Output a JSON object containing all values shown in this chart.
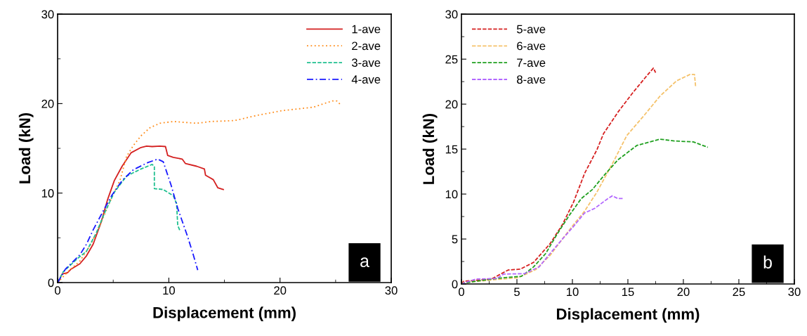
{
  "chart_data": [
    {
      "type": "line",
      "xlabel": "Displacement (mm)",
      "ylabel": "Load (kN)",
      "annotations": [
        "a"
      ],
      "xlim": [
        0,
        30
      ],
      "ylim": [
        0,
        30
      ],
      "xticks": [
        0,
        {
          "value": 5,
          "label": null
        },
        10,
        {
          "value": 15,
          "label": null
        },
        20,
        {
          "value": 25,
          "label": null
        },
        30
      ],
      "yticks": [
        0,
        {
          "value": 5,
          "label": null
        },
        10,
        {
          "value": 15,
          "label": null
        },
        20,
        {
          "value": 25,
          "label": null
        },
        30
      ],
      "grid": false,
      "legend": "top right",
      "marker": "none",
      "series": [
        {
          "name": "1-ave",
          "color": "#d42020",
          "line_style": "solid",
          "x": [
            0,
            0.1,
            0.4,
            0.9,
            1.2,
            2.0,
            2.6,
            3.2,
            3.9,
            4.5,
            5.1,
            5.8,
            6.6,
            7.5,
            8.0,
            8.5,
            9.2,
            9.7,
            9.9,
            10.4,
            11.2,
            11.5,
            12.5,
            13.2,
            13.3,
            14.0,
            14.4,
            14.9
          ],
          "values": [
            0,
            0.15,
            0.95,
            1.1,
            1.5,
            2.1,
            3.0,
            4.3,
            6.7,
            9.3,
            11.4,
            13.0,
            14.5,
            15.1,
            15.25,
            15.2,
            15.25,
            15.2,
            14.2,
            14.0,
            13.8,
            13.3,
            13.0,
            12.7,
            12.0,
            11.5,
            10.6,
            10.4
          ]
        },
        {
          "name": "2-ave",
          "color": "#ff8c1a",
          "line_style": "dotted",
          "x": [
            0,
            1.0,
            2.0,
            3.0,
            3.8,
            4.9,
            5.6,
            6.2,
            6.8,
            7.5,
            8.3,
            9.2,
            10.4,
            12.5,
            13.8,
            15.9,
            18.0,
            20.1,
            23.0,
            24.7,
            25.1,
            25.5
          ],
          "values": [
            0,
            1.3,
            2.4,
            4.3,
            6.4,
            9.6,
            11.4,
            14.1,
            15.3,
            16.4,
            17.3,
            17.8,
            18.0,
            17.8,
            18.0,
            18.1,
            18.7,
            19.2,
            19.6,
            20.3,
            20.3,
            19.8
          ]
        },
        {
          "name": "3-ave",
          "color": "#20c090",
          "line_style": "dashed",
          "x": [
            0,
            0.5,
            1.8,
            2.6,
            3.5,
            4.3,
            5.1,
            6.2,
            7.5,
            8.5,
            8.7,
            8.7,
            9.5,
            10.4,
            10.7,
            10.8,
            11.0
          ],
          "values": [
            0,
            1.2,
            2.7,
            3.5,
            5.6,
            8.0,
            10.1,
            11.9,
            12.7,
            13.2,
            13.0,
            10.5,
            10.4,
            9.7,
            8.8,
            6.4,
            5.8
          ]
        },
        {
          "name": "4-ave",
          "color": "#1a1aff",
          "line_style": "dashdot",
          "x": [
            0,
            0.7,
            2.0,
            2.6,
            3.2,
            4.1,
            4.9,
            5.8,
            6.8,
            8.1,
            9.0,
            9.5,
            10.2,
            10.8,
            11.7,
            12.2,
            12.6
          ],
          "values": [
            0,
            1.5,
            3.1,
            4.3,
            5.9,
            8.0,
            9.8,
            11.4,
            12.6,
            13.4,
            13.8,
            13.5,
            10.9,
            8.3,
            5.1,
            3.1,
            1.4
          ]
        }
      ]
    },
    {
      "type": "line",
      "xlabel": "Displacement (mm)",
      "ylabel": "Load (kN)",
      "annotations": [
        "b"
      ],
      "xlim": [
        0,
        30
      ],
      "ylim": [
        0,
        30
      ],
      "xticks": [
        0,
        {
          "value": 2.5,
          "label": null
        },
        5,
        {
          "value": 7.5,
          "label": null
        },
        10,
        {
          "value": 12.5,
          "label": null
        },
        15,
        {
          "value": 17.5,
          "label": null
        },
        20,
        {
          "value": 22.5,
          "label": null
        },
        25,
        {
          "value": 27.5,
          "label": null
        },
        30
      ],
      "yticks": [
        0,
        {
          "value": 2.5,
          "label": null
        },
        5,
        {
          "value": 7.5,
          "label": null
        },
        10,
        {
          "value": 12.5,
          "label": null
        },
        15,
        {
          "value": 17.5,
          "label": null
        },
        20,
        {
          "value": 22.5,
          "label": null
        },
        25,
        {
          "value": 27.5,
          "label": null
        },
        30
      ],
      "grid": false,
      "legend": "top left",
      "marker": "none",
      "line_style": "dashed",
      "series": [
        {
          "name": "5-ave",
          "color": "#d62020",
          "x": [
            0,
            0.2,
            2.7,
            4.2,
            5.3,
            6.5,
            8.0,
            9.1,
            10.1,
            11.1,
            12.2,
            12.8,
            14.1,
            15.4,
            16.6,
            17.3,
            17.5
          ],
          "values": [
            0,
            0.3,
            0.55,
            1.55,
            1.65,
            2.4,
            4.5,
            6.6,
            9.1,
            12.3,
            14.9,
            16.7,
            19.1,
            21.2,
            23.0,
            24.0,
            23.5
          ]
        },
        {
          "name": "6-ave",
          "color": "#f5c26b",
          "x": [
            0,
            0.2,
            2.7,
            5.1,
            6.7,
            8.0,
            9.1,
            10.1,
            11.1,
            12.2,
            13.7,
            14.9,
            16.5,
            17.9,
            19.4,
            20.6,
            21.0,
            21.1
          ],
          "values": [
            0,
            0.15,
            0.45,
            0.7,
            1.6,
            3.2,
            5.0,
            6.6,
            8.1,
            10.2,
            13.6,
            16.5,
            18.8,
            20.9,
            22.6,
            23.3,
            23.3,
            22.0
          ]
        },
        {
          "name": "7-ave",
          "color": "#20a020",
          "x": [
            0,
            0.2,
            2.1,
            3.8,
            5.4,
            6.5,
            7.6,
            8.6,
            9.7,
            10.8,
            11.8,
            12.8,
            14.1,
            15.8,
            17.9,
            19.2,
            20.9,
            22.2
          ],
          "values": [
            0,
            0.1,
            0.45,
            0.7,
            0.85,
            1.9,
            3.4,
            5.5,
            7.6,
            9.5,
            10.5,
            12.0,
            13.8,
            15.4,
            16.1,
            15.9,
            15.8,
            15.2
          ]
        },
        {
          "name": "8-ave",
          "color": "#b266ff",
          "x": [
            0,
            0.2,
            1.3,
            3.2,
            3.8,
            5.7,
            7.0,
            8.0,
            9.1,
            10.1,
            11.1,
            12.0,
            13.2,
            13.6,
            14.1,
            14.6
          ],
          "values": [
            0,
            0.1,
            0.55,
            0.6,
            1.1,
            1.15,
            1.9,
            3.4,
            5.0,
            6.4,
            7.9,
            8.4,
            9.5,
            9.8,
            9.5,
            9.5
          ]
        }
      ]
    }
  ]
}
